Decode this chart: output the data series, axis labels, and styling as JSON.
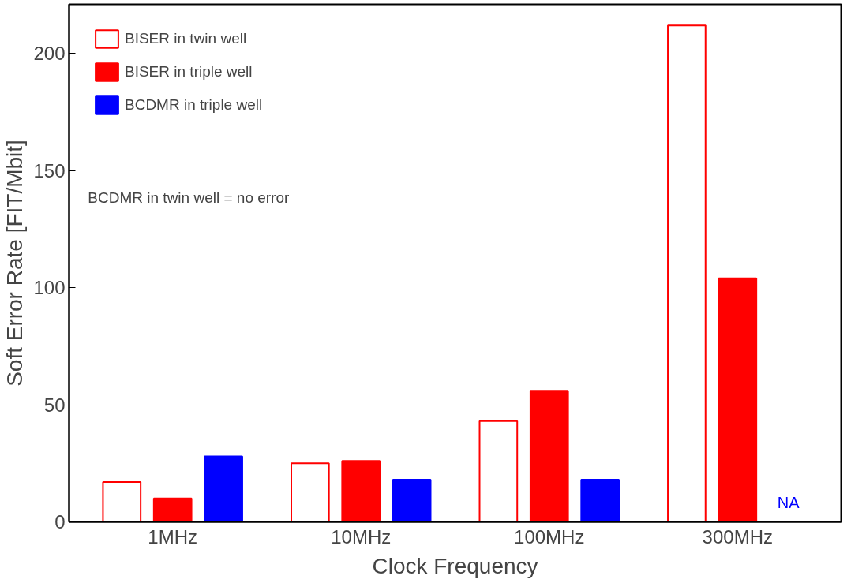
{
  "chart_data": {
    "type": "bar",
    "xlabel": "Clock Frequency",
    "ylabel": "Soft Error Rate [FIT/Mbit]",
    "categories": [
      "1MHz",
      "10MHz",
      "100MHz",
      "300MHz"
    ],
    "series": [
      {
        "name": "BISER in twin well",
        "color": "#ff0000",
        "values": [
          17,
          25,
          43,
          212
        ]
      },
      {
        "name": "BISER in triple well",
        "color": "#ff0000",
        "values": [
          10,
          26,
          56,
          104
        ]
      },
      {
        "name": "BCDMR in triple well",
        "color": "#0000ff",
        "values": [
          28,
          18,
          18,
          null
        ]
      }
    ],
    "ylim": [
      0,
      221
    ],
    "yticks": [
      0,
      50,
      100,
      150,
      200
    ],
    "grid": false,
    "legend": "top left",
    "annotations": [
      "BCDMR in twin well = no error",
      {
        "text": "NA",
        "x": "300MHz",
        "y": 0
      }
    ]
  }
}
